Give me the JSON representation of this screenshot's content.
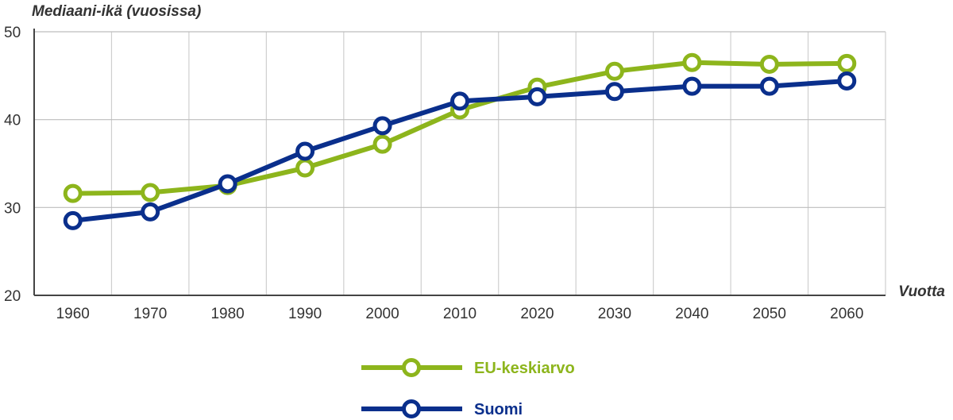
{
  "chart_data": {
    "type": "line",
    "ylabel": "Mediaani-ikä (vuosissa)",
    "xlabel": "Vuotta",
    "ylim": [
      20,
      50
    ],
    "yticks": [
      20,
      30,
      40,
      50
    ],
    "x": [
      1960,
      1970,
      1980,
      1990,
      2000,
      2010,
      2020,
      2030,
      2040,
      2050,
      2060
    ],
    "grid": true,
    "legend_position": "bottom-center",
    "series": [
      {
        "name": "EU-keskiarvo",
        "color": "#8db51c",
        "values": [
          31.6,
          31.7,
          32.5,
          34.5,
          37.2,
          41.1,
          43.7,
          45.5,
          46.5,
          46.3,
          46.4
        ]
      },
      {
        "name": "Suomi",
        "color": "#0a2f8c",
        "values": [
          28.5,
          29.5,
          32.7,
          36.4,
          39.3,
          42.1,
          42.6,
          43.2,
          43.8,
          43.8,
          44.4
        ]
      }
    ]
  }
}
